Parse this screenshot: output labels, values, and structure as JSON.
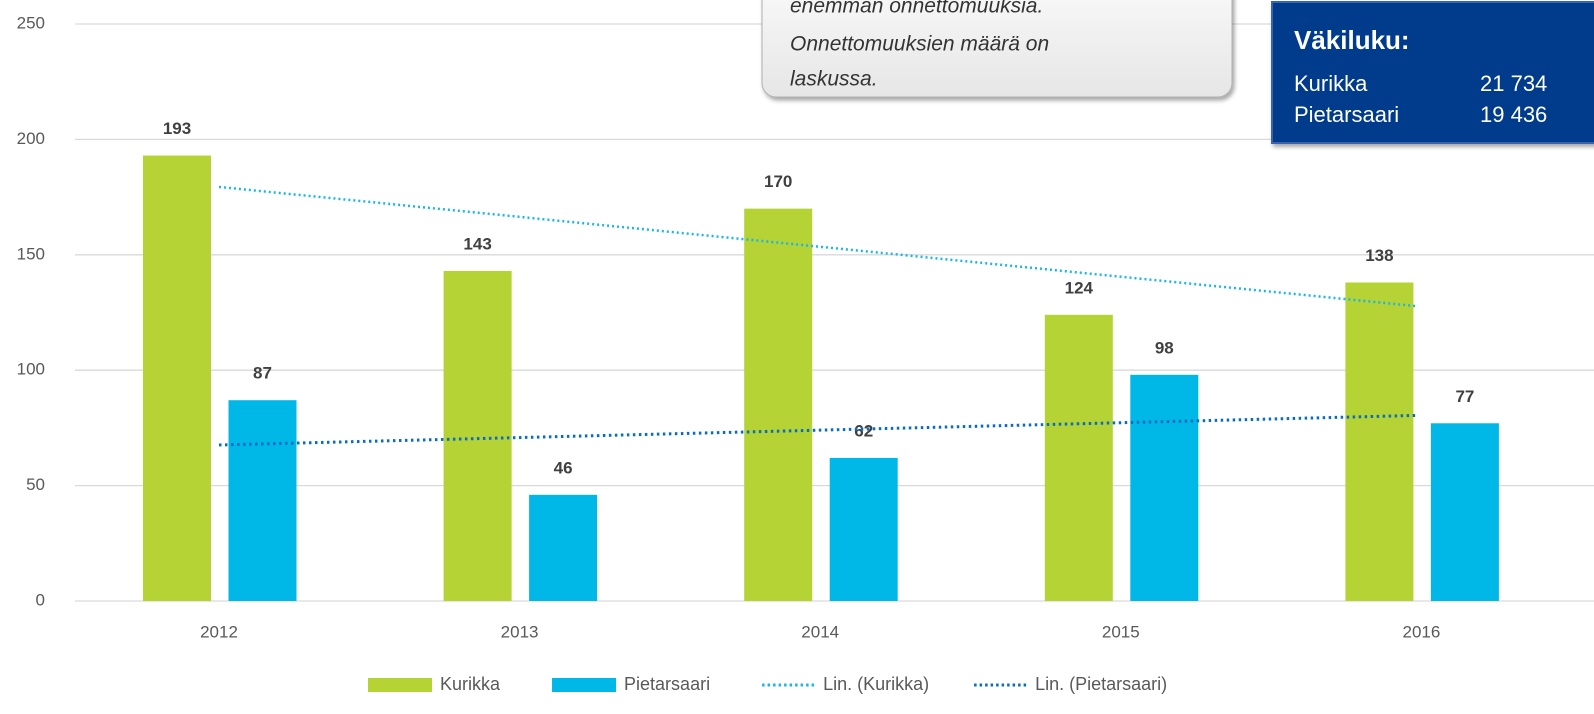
{
  "chart_data": {
    "type": "bar",
    "categories": [
      "2012",
      "2013",
      "2014",
      "2015",
      "2016"
    ],
    "series": [
      {
        "name": "Kurikka",
        "color": "#b5d334",
        "values": [
          193,
          143,
          170,
          124,
          138
        ],
        "trendline": {
          "name": "Lin. (Kurikka)",
          "color": "#1ab6e8"
        }
      },
      {
        "name": "Pietarsaari",
        "color": "#00b8e8",
        "values": [
          87,
          46,
          62,
          98,
          77
        ],
        "trendline": {
          "name": "Lin. (Pietarsaari)",
          "color": "#0a6cc0"
        }
      }
    ],
    "ylim": [
      0,
      250
    ],
    "yticks": [
      0,
      50,
      100,
      150,
      200,
      250
    ],
    "grid": true,
    "legend": "bottom"
  },
  "annotation": {
    "lines": [
      "enemmän onnettomuuksia.",
      "Onnettomuuksien määrä on",
      "laskussa."
    ]
  },
  "population_box": {
    "title": "Väkiluku:",
    "rows": [
      [
        "Kurikka",
        "21 734"
      ],
      [
        "Pietarsaari",
        "19 436"
      ]
    ]
  }
}
